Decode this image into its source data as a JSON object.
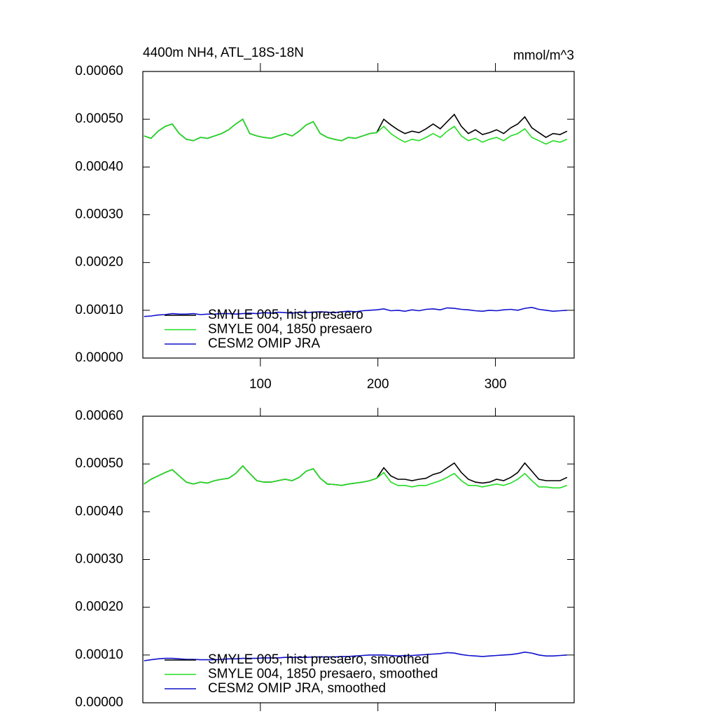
{
  "chart_data": [
    {
      "type": "line",
      "title": "4400m NH4, ATL_18S-18N",
      "units": "mmol/m^3",
      "x": [
        1,
        7,
        13,
        19,
        25,
        31,
        37,
        43,
        49,
        55,
        61,
        67,
        73,
        79,
        85,
        91,
        97,
        103,
        109,
        115,
        121,
        127,
        133,
        139,
        145,
        151,
        157,
        163,
        169,
        175,
        181,
        187,
        193,
        199,
        205,
        211,
        217,
        223,
        229,
        235,
        241,
        247,
        253,
        259,
        265,
        271,
        277,
        283,
        289,
        295,
        301,
        307,
        313,
        319,
        325,
        331,
        337,
        343,
        349,
        355,
        361
      ],
      "xlim": [
        0,
        367
      ],
      "xticks": [
        100,
        200,
        300
      ],
      "xtick_labels": true,
      "ylim": [
        0,
        0.0006
      ],
      "yticks": [
        {
          "value": 0,
          "label": "0.00000"
        },
        {
          "value": 0.0001,
          "label": "0.00010"
        },
        {
          "value": 0.0002,
          "label": "0.00020"
        },
        {
          "value": 0.0003,
          "label": "0.00030"
        },
        {
          "value": 0.0004,
          "label": "0.00040"
        },
        {
          "value": 0.0005,
          "label": "0.00050"
        },
        {
          "value": 0.0006,
          "label": "0.00060"
        }
      ],
      "legend": "lower left",
      "series": [
        {
          "name": "SMYLE 005, hist presaero",
          "color": "#000000",
          "values": [
            0.000465,
            0.00046,
            0.000475,
            0.000485,
            0.00049,
            0.00047,
            0.000458,
            0.000455,
            0.000462,
            0.00046,
            0.000465,
            0.00047,
            0.000478,
            0.00049,
            0.0005,
            0.00047,
            0.000465,
            0.000462,
            0.00046,
            0.000465,
            0.00047,
            0.000465,
            0.000475,
            0.000488,
            0.000495,
            0.00047,
            0.000462,
            0.000458,
            0.000455,
            0.000462,
            0.00046,
            0.000465,
            0.00047,
            0.000472,
            0.0005,
            0.000488,
            0.000478,
            0.00047,
            0.000475,
            0.000472,
            0.00048,
            0.00049,
            0.00048,
            0.000495,
            0.00051,
            0.000485,
            0.00047,
            0.000478,
            0.000468,
            0.000472,
            0.000478,
            0.00047,
            0.000482,
            0.00049,
            0.000505,
            0.000482,
            0.000472,
            0.000462,
            0.00047,
            0.000468,
            0.000475
          ]
        },
        {
          "name": "SMYLE 004, 1850 presaero",
          "color": "#22dd22",
          "values": [
            0.000465,
            0.00046,
            0.000475,
            0.000485,
            0.00049,
            0.00047,
            0.000458,
            0.000455,
            0.000462,
            0.00046,
            0.000465,
            0.00047,
            0.000478,
            0.00049,
            0.0005,
            0.00047,
            0.000465,
            0.000462,
            0.00046,
            0.000465,
            0.00047,
            0.000465,
            0.000475,
            0.000488,
            0.000495,
            0.00047,
            0.000462,
            0.000458,
            0.000455,
            0.000462,
            0.00046,
            0.000465,
            0.00047,
            0.000472,
            0.000485,
            0.00047,
            0.00046,
            0.000452,
            0.000458,
            0.000455,
            0.000462,
            0.00047,
            0.000462,
            0.000475,
            0.000485,
            0.000465,
            0.000455,
            0.00046,
            0.000452,
            0.000458,
            0.000462,
            0.000455,
            0.000465,
            0.00047,
            0.00048,
            0.000462,
            0.000455,
            0.000448,
            0.000455,
            0.000452,
            0.000458
          ]
        },
        {
          "name": "CESM2 OMIP JRA",
          "color": "#1010cc",
          "values": [
            8.7e-05,
            8.8e-05,
            9e-05,
            9.1e-05,
            9.3e-05,
            9.2e-05,
            9.2e-05,
            9.3e-05,
            9.1e-05,
            9.2e-05,
            9.2e-05,
            9.3e-05,
            9.3e-05,
            9.2e-05,
            9.3e-05,
            9.4e-05,
            9.3e-05,
            9.5e-05,
            9.4e-05,
            9.6e-05,
            9.5e-05,
            9.4e-05,
            9.6e-05,
            9.5e-05,
            9.6e-05,
            9.7e-05,
            9.6e-05,
            9.5e-05,
            9.7e-05,
            9.8e-05,
            9.7e-05,
            9.9e-05,
            0.0001,
            0.000101,
            0.000103,
            9.9e-05,
            0.0001,
            9.8e-05,
            0.000101,
            9.9e-05,
            0.000102,
            0.000103,
            0.000101,
            0.000105,
            0.000104,
            0.000102,
            0.000101,
            9.9e-05,
            9.8e-05,
            0.0001,
            9.9e-05,
            0.000101,
            0.000102,
            0.0001,
            0.000104,
            0.000106,
            0.000102,
            0.0001,
            9.8e-05,
            9.9e-05,
            0.0001
          ]
        }
      ]
    },
    {
      "type": "line",
      "x": [
        1,
        7,
        13,
        19,
        25,
        31,
        37,
        43,
        49,
        55,
        61,
        67,
        73,
        79,
        85,
        91,
        97,
        103,
        109,
        115,
        121,
        127,
        133,
        139,
        145,
        151,
        157,
        163,
        169,
        175,
        181,
        187,
        193,
        199,
        205,
        211,
        217,
        223,
        229,
        235,
        241,
        247,
        253,
        259,
        265,
        271,
        277,
        283,
        289,
        295,
        301,
        307,
        313,
        319,
        325,
        331,
        337,
        343,
        349,
        355,
        361
      ],
      "xlim": [
        0,
        367
      ],
      "xticks": [
        100,
        200,
        300
      ],
      "xtick_labels": false,
      "ylim": [
        0,
        0.0006
      ],
      "yticks": [
        {
          "value": 0,
          "label": "0.00000"
        },
        {
          "value": 0.0001,
          "label": "0.00010"
        },
        {
          "value": 0.0002,
          "label": "0.00020"
        },
        {
          "value": 0.0003,
          "label": "0.00030"
        },
        {
          "value": 0.0004,
          "label": "0.00040"
        },
        {
          "value": 0.0005,
          "label": "0.00050"
        },
        {
          "value": 0.0006,
          "label": "0.00060"
        }
      ],
      "legend": "lower left",
      "series": [
        {
          "name": "SMYLE 005, hist presaero, smoothed",
          "color": "#000000",
          "values": [
            0.000458,
            0.000468,
            0.000475,
            0.000482,
            0.000488,
            0.000475,
            0.000462,
            0.000458,
            0.000462,
            0.00046,
            0.000465,
            0.000468,
            0.00047,
            0.00048,
            0.000496,
            0.00048,
            0.000465,
            0.000462,
            0.000462,
            0.000465,
            0.000468,
            0.000465,
            0.000472,
            0.000485,
            0.00049,
            0.00047,
            0.000458,
            0.000457,
            0.000455,
            0.000458,
            0.00046,
            0.000462,
            0.000465,
            0.00047,
            0.000492,
            0.000475,
            0.000468,
            0.000468,
            0.000465,
            0.000468,
            0.00047,
            0.000478,
            0.000482,
            0.000492,
            0.000502,
            0.000482,
            0.000468,
            0.000462,
            0.00046,
            0.000462,
            0.000468,
            0.000465,
            0.000472,
            0.000482,
            0.000502,
            0.000485,
            0.000468,
            0.000465,
            0.000465,
            0.000465,
            0.000472
          ]
        },
        {
          "name": "SMYLE 004, 1850 presaero, smoothed",
          "color": "#22dd22",
          "values": [
            0.000458,
            0.000468,
            0.000475,
            0.000482,
            0.000488,
            0.000475,
            0.000462,
            0.000458,
            0.000462,
            0.00046,
            0.000465,
            0.000468,
            0.00047,
            0.00048,
            0.000496,
            0.00048,
            0.000465,
            0.000462,
            0.000462,
            0.000465,
            0.000468,
            0.000465,
            0.000472,
            0.000485,
            0.00049,
            0.00047,
            0.000458,
            0.000457,
            0.000455,
            0.000458,
            0.00046,
            0.000462,
            0.000465,
            0.00047,
            0.000482,
            0.000462,
            0.000455,
            0.000455,
            0.000452,
            0.000455,
            0.000455,
            0.00046,
            0.000465,
            0.000472,
            0.00048,
            0.000465,
            0.000455,
            0.000455,
            0.000452,
            0.000455,
            0.000458,
            0.000455,
            0.00046,
            0.000468,
            0.00048,
            0.000465,
            0.000452,
            0.000452,
            0.00045,
            0.00045,
            0.000455
          ]
        },
        {
          "name": "CESM2 OMIP JRA, smoothed",
          "color": "#1010cc",
          "values": [
            8.8e-05,
            9e-05,
            9.2e-05,
            9.3e-05,
            9.3e-05,
            9.2e-05,
            9.1e-05,
            9.1e-05,
            9e-05,
            9e-05,
            9e-05,
            9.1e-05,
            9.2e-05,
            9.2e-05,
            9.3e-05,
            9.3e-05,
            9.3e-05,
            9.4e-05,
            9.4e-05,
            9.4e-05,
            9.5e-05,
            9.5e-05,
            9.5e-05,
            9.5e-05,
            9.6e-05,
            9.6e-05,
            9.6e-05,
            9.6e-05,
            9.7e-05,
            9.7e-05,
            9.8e-05,
            9.9e-05,
            0.0001,
            0.0001,
            0.0001,
            9.9e-05,
            9.8e-05,
            9.9e-05,
            9.9e-05,
            0.0001,
            0.000101,
            0.000102,
            0.000103,
            0.000105,
            0.000104,
            0.000101,
            9.9e-05,
            9.8e-05,
            9.7e-05,
            9.8e-05,
            9.9e-05,
            0.0001,
            0.000101,
            0.000103,
            0.000106,
            0.000104,
            0.0001,
            9.8e-05,
            9.8e-05,
            9.9e-05,
            0.0001
          ]
        }
      ]
    }
  ]
}
